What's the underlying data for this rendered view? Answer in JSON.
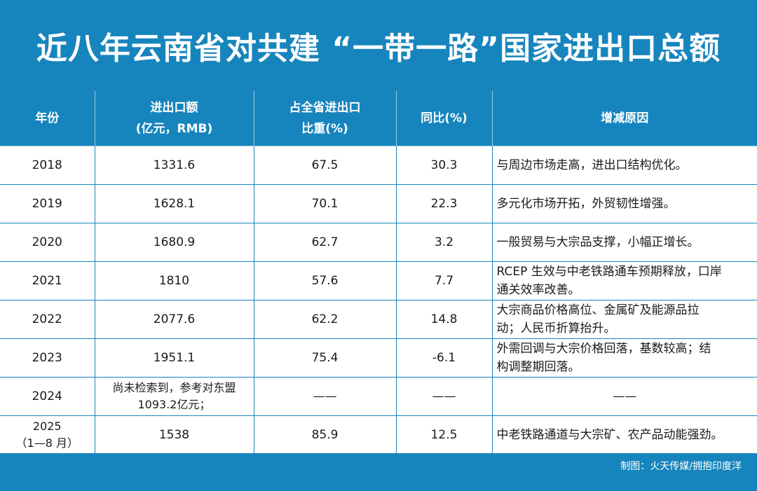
{
  "title": "近八年云南省对共建 “一带一路”国家进出口总额",
  "table": {
    "headers": [
      [
        "年份"
      ],
      [
        "进出口额",
        "(亿元，RMB)"
      ],
      [
        "占全省进出口",
        "比重(%)"
      ],
      [
        "同比(%)"
      ],
      [
        "增减原因"
      ]
    ],
    "rows": [
      {
        "year": [
          "2018"
        ],
        "amount": [
          "1331.6"
        ],
        "share": "67.5",
        "yoy": "30.3",
        "reason": [
          "与周边市场走高，进出口结构优化。"
        ]
      },
      {
        "year": [
          "2019"
        ],
        "amount": [
          "1628.1"
        ],
        "share": "70.1",
        "yoy": "22.3",
        "reason": [
          "多元化市场开拓，外贸韧性增强。"
        ]
      },
      {
        "year": [
          "2020"
        ],
        "amount": [
          "1680.9"
        ],
        "share": "62.7",
        "yoy": "3.2",
        "reason": [
          "一般贸易与大宗品支撑，小幅正增长。"
        ]
      },
      {
        "year": [
          "2021"
        ],
        "amount": [
          "1810"
        ],
        "share": "57.6",
        "yoy": "7.7",
        "reason": [
          "RCEP 生效与中老铁路通车预期释放，口岸",
          "通关效率改善。"
        ]
      },
      {
        "year": [
          "2022"
        ],
        "amount": [
          "2077.6"
        ],
        "share": "62.2",
        "yoy": "14.8",
        "reason": [
          "大宗商品价格高位、金属矿及能源品拉",
          "动；人民币折算抬升。"
        ]
      },
      {
        "year": [
          "2023"
        ],
        "amount": [
          "1951.1"
        ],
        "share": "75.4",
        "yoy": "-6.1",
        "reason": [
          "外需回调与大宗价格回落，基数较高；结",
          "构调整期回落。"
        ]
      },
      {
        "year": [
          "2024"
        ],
        "amount": [
          "尚未检索到，参考对东盟",
          "1093.2亿元；"
        ],
        "share": "——",
        "yoy": "——",
        "reason": [
          "——"
        ]
      },
      {
        "year": [
          "2025",
          "（1—8 月）"
        ],
        "amount": [
          "1538"
        ],
        "share": "85.9",
        "yoy": "12.5",
        "reason": [
          "中老铁路通道与大宗矿、农产品动能强劲。"
        ]
      }
    ]
  },
  "footer": "制图：火天传媒/拥抱印度洋"
}
